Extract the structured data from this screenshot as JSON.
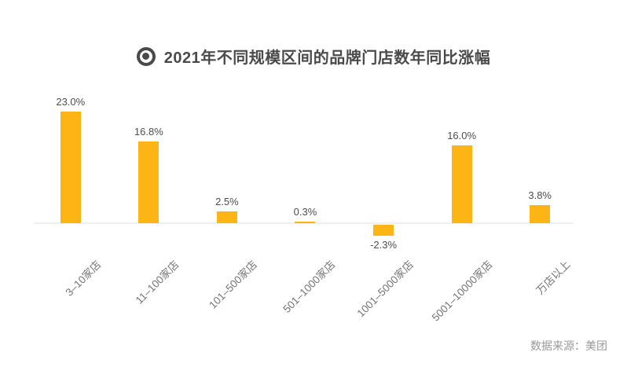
{
  "header": {
    "title": "2021年不同规模区间的品牌门店数年同比涨幅",
    "icon": "target-bullseye-icon",
    "title_color": "#4a4a4a"
  },
  "chart_data": {
    "type": "bar",
    "title": "2021年不同规模区间的品牌门店数年同比涨幅",
    "categories": [
      "3–10家店",
      "11–100家店",
      "101–500家店",
      "501–1000家店",
      "1001–5000家店",
      "5001–10000家店",
      "万店以上"
    ],
    "values": [
      23.0,
      16.8,
      2.5,
      0.3,
      -2.3,
      16.0,
      3.8
    ],
    "value_labels": [
      "23.0%",
      "16.8%",
      "2.5%",
      "0.3%",
      "-2.3%",
      "16.0%",
      "3.8%"
    ],
    "unit": "%",
    "bar_color": "#FCB514",
    "value_label_color": "#4d4d4d",
    "category_label_color": "#767676",
    "category_label_rotation_deg": -45,
    "ylim": [
      -4,
      25
    ],
    "grid": false,
    "legend": false,
    "baseline_axis_color": "#f0f0f0"
  },
  "footer": {
    "source_label": "数据来源：美团"
  }
}
